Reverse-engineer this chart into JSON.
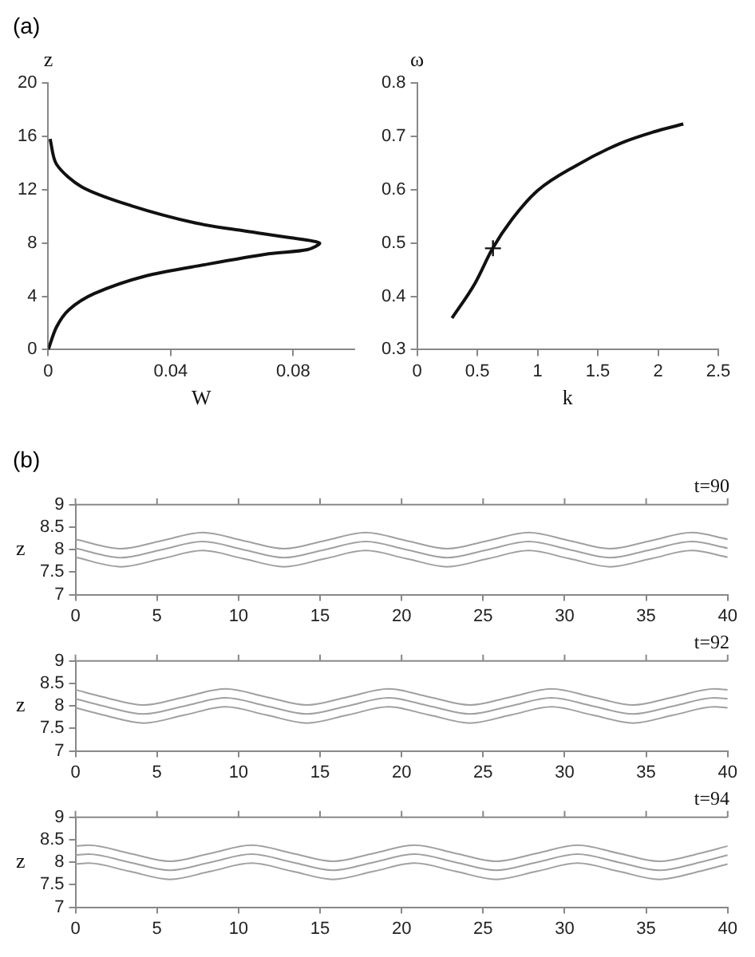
{
  "chart_data": [
    {
      "type": "line",
      "annotations": [
        "(a)"
      ],
      "xlabel": "W",
      "ylabel": "z",
      "xlim": [
        0,
        0.1
      ],
      "xticks": [
        0,
        0.04,
        0.08
      ],
      "ylim": [
        0,
        20
      ],
      "yticks": [
        0,
        4,
        8,
        12,
        16,
        20
      ],
      "grid": false,
      "legend": false,
      "marker": "none",
      "series": [
        {
          "color": "#111111",
          "x": [
            0,
            0.0027,
            0.0068,
            0.015,
            0.0314,
            0.0519,
            0.0724,
            0.0847,
            0.0886,
            0.079,
            0.064,
            0.048,
            0.027,
            0.011,
            0.0027,
            0.0006
          ],
          "values": [
            0,
            1.7,
            3,
            4.2,
            5.5,
            6.4,
            7.2,
            7.5,
            8.0,
            8.4,
            8.9,
            9.5,
            10.8,
            12.2,
            13.9,
            15.8
          ]
        }
      ]
    },
    {
      "type": "line",
      "xlabel": "k",
      "ylabel": "ω",
      "xlim": [
        0,
        2.5
      ],
      "xticks": [
        0,
        0.5,
        1,
        1.5,
        2,
        2.5
      ],
      "ylim": [
        0.3,
        0.8
      ],
      "yticks": [
        0.3,
        0.4,
        0.5,
        0.6,
        0.7,
        0.8
      ],
      "grid": false,
      "legend": false,
      "series": [
        {
          "color": "#111111",
          "marker": "none",
          "x": [
            0.29,
            0.48,
            0.625,
            0.79,
            1.0,
            1.32,
            1.69,
            1.96,
            2.21
          ],
          "values": [
            0.359,
            0.424,
            0.489,
            0.545,
            0.598,
            0.645,
            0.687,
            0.708,
            0.723
          ]
        },
        {
          "type": "scatter",
          "color": "#111111",
          "marker": "cross",
          "x": [
            0.63
          ],
          "values": [
            0.49
          ]
        }
      ]
    },
    {
      "type": "line",
      "annotations": [
        "(b)"
      ],
      "title": "t=90",
      "ylabel": "z",
      "xlim": [
        0,
        40
      ],
      "xticks": [
        0,
        5,
        10,
        15,
        20,
        25,
        30,
        35,
        40
      ],
      "ylim": [
        7,
        9
      ],
      "yticks": [
        7,
        7.5,
        8,
        8.5,
        9
      ],
      "grid": false,
      "legend": false,
      "marker": "none",
      "x": [
        0,
        2.8,
        5.3,
        7.8,
        10.3,
        12.8,
        15.3,
        17.8,
        20.3,
        22.8,
        25.3,
        27.8,
        30.3,
        32.8,
        35.3,
        37.8,
        40
      ],
      "series": [
        {
          "color": "#a0a0a0",
          "values": [
            8.23,
            8.02,
            8.2,
            8.38,
            8.2,
            8.02,
            8.2,
            8.38,
            8.2,
            8.02,
            8.2,
            8.38,
            8.2,
            8.02,
            8.2,
            8.38,
            8.23
          ]
        },
        {
          "color": "#a0a0a0",
          "values": [
            8.03,
            7.82,
            8.0,
            8.18,
            8.0,
            7.82,
            8.0,
            8.18,
            8.0,
            7.82,
            8.0,
            8.18,
            8.0,
            7.82,
            8.0,
            8.18,
            8.03
          ]
        },
        {
          "color": "#a0a0a0",
          "values": [
            7.83,
            7.62,
            7.8,
            7.98,
            7.8,
            7.62,
            7.8,
            7.98,
            7.8,
            7.62,
            7.8,
            7.98,
            7.8,
            7.62,
            7.8,
            7.98,
            7.83
          ]
        }
      ]
    },
    {
      "type": "line",
      "title": "t=92",
      "ylabel": "z",
      "xlim": [
        0,
        40
      ],
      "xticks": [
        0,
        5,
        10,
        15,
        20,
        25,
        30,
        35,
        40
      ],
      "ylim": [
        7,
        9
      ],
      "yticks": [
        7,
        7.5,
        8,
        8.5,
        9
      ],
      "grid": false,
      "legend": false,
      "marker": "none",
      "x": [
        0,
        1.7,
        4.2,
        6.7,
        9.2,
        11.7,
        14.2,
        16.7,
        19.2,
        21.7,
        24.2,
        26.7,
        29.2,
        31.7,
        34.2,
        36.7,
        39.2,
        40
      ],
      "series": [
        {
          "color": "#a0a0a0",
          "values": [
            8.36,
            8.2,
            8.02,
            8.2,
            8.38,
            8.2,
            8.02,
            8.2,
            8.38,
            8.2,
            8.02,
            8.2,
            8.38,
            8.2,
            8.02,
            8.2,
            8.38,
            8.36
          ]
        },
        {
          "color": "#a0a0a0",
          "values": [
            8.16,
            8.0,
            7.82,
            8.0,
            8.18,
            8.0,
            7.82,
            8.0,
            8.18,
            8.0,
            7.82,
            8.0,
            8.18,
            8.0,
            7.82,
            8.0,
            8.18,
            8.16
          ]
        },
        {
          "color": "#a0a0a0",
          "values": [
            7.96,
            7.8,
            7.62,
            7.8,
            7.98,
            7.8,
            7.62,
            7.8,
            7.98,
            7.8,
            7.62,
            7.8,
            7.98,
            7.8,
            7.62,
            7.8,
            7.98,
            7.96
          ]
        }
      ]
    },
    {
      "type": "line",
      "title": "t=94",
      "ylabel": "z",
      "xlim": [
        0,
        40
      ],
      "xticks": [
        0,
        5,
        10,
        15,
        20,
        25,
        30,
        35,
        40
      ],
      "ylim": [
        7,
        9
      ],
      "yticks": [
        7,
        7.5,
        8,
        8.5,
        9
      ],
      "grid": false,
      "legend": false,
      "marker": "none",
      "x": [
        0,
        0.8,
        3.3,
        5.8,
        8.3,
        10.8,
        13.3,
        15.8,
        18.3,
        20.8,
        23.3,
        25.8,
        28.3,
        30.8,
        33.3,
        35.8,
        38.3,
        40
      ],
      "series": [
        {
          "color": "#a0a0a0",
          "values": [
            8.36,
            8.38,
            8.2,
            8.02,
            8.2,
            8.38,
            8.2,
            8.02,
            8.2,
            8.38,
            8.2,
            8.02,
            8.2,
            8.38,
            8.2,
            8.02,
            8.2,
            8.36
          ]
        },
        {
          "color": "#a0a0a0",
          "values": [
            8.16,
            8.18,
            8.0,
            7.82,
            8.0,
            8.18,
            8.0,
            7.82,
            8.0,
            8.18,
            8.0,
            7.82,
            8.0,
            8.18,
            8.0,
            7.82,
            8.0,
            8.16
          ]
        },
        {
          "color": "#a0a0a0",
          "values": [
            7.96,
            7.98,
            7.8,
            7.62,
            7.8,
            7.98,
            7.8,
            7.62,
            7.8,
            7.98,
            7.8,
            7.62,
            7.8,
            7.98,
            7.8,
            7.62,
            7.8,
            7.96
          ]
        }
      ]
    }
  ]
}
